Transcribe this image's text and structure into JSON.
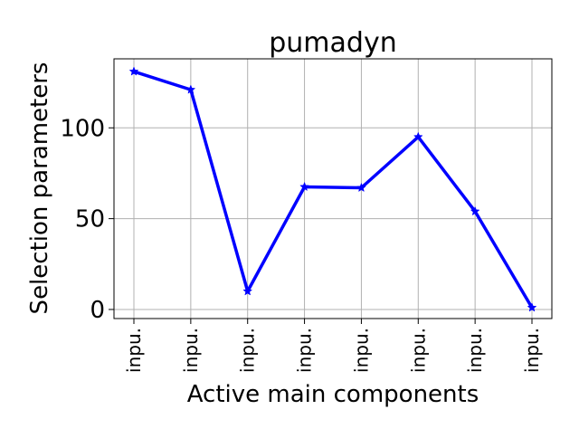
{
  "chart_data": {
    "type": "line",
    "title": "pumadyn",
    "xlabel": "Active main components",
    "ylabel": "Selection parameters",
    "categories": [
      "inpu.",
      "inpu.",
      "inpu.",
      "inpu.",
      "inpu.",
      "inpu.",
      "inpu.",
      "inpu."
    ],
    "series": [
      {
        "values": [
          131,
          121,
          10,
          67.5,
          67,
          95,
          54,
          1
        ],
        "color": "#0000ff",
        "marker": "star"
      }
    ],
    "yticks": [
      0,
      50,
      100
    ],
    "ylim": [
      -5,
      138
    ],
    "grid": true
  }
}
